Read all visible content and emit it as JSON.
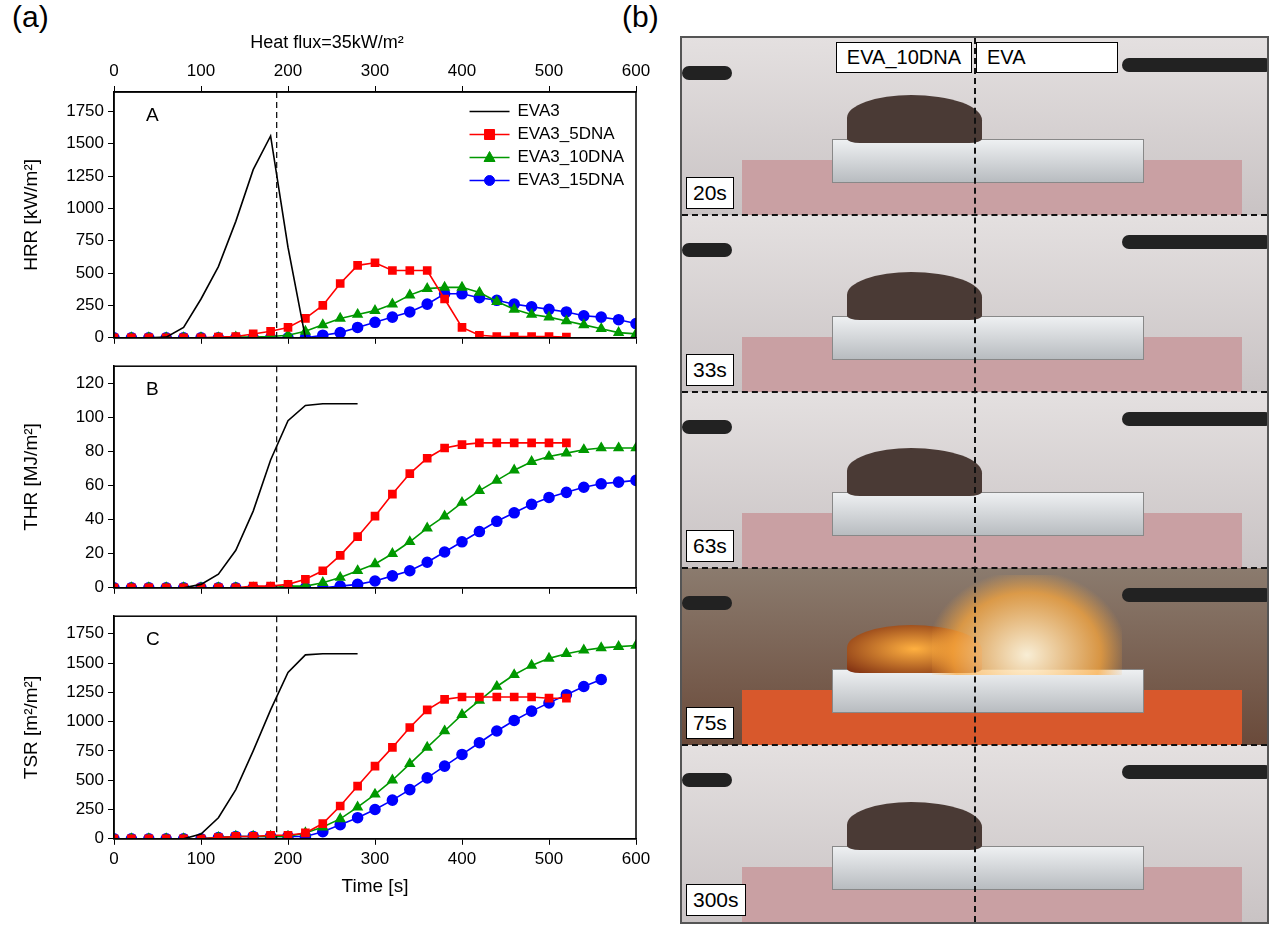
{
  "panel_labels": [
    "(a)",
    "(b)"
  ],
  "chart_data": [
    {
      "type": "line",
      "title": "Heat flux=35kW/m²",
      "annotation": "A",
      "y_label": "HRR [kW/m²]",
      "x": [
        0,
        20,
        40,
        60,
        80,
        100,
        120,
        140,
        160,
        180,
        200,
        220,
        240,
        260,
        280,
        300,
        320,
        340,
        360,
        380,
        400,
        420,
        440,
        460,
        480,
        500,
        520,
        540,
        560,
        580,
        600
      ],
      "xlim": [
        0,
        600
      ],
      "xticks": [
        0,
        100,
        200,
        300,
        400,
        500,
        600
      ],
      "x2lim": [
        0,
        600
      ],
      "x2ticks": [
        0,
        100,
        200,
        300,
        400,
        500,
        600
      ],
      "ylim": [
        0,
        1900
      ],
      "yticks": [
        0,
        250,
        500,
        750,
        1000,
        1250,
        1500,
        1750
      ],
      "vline_x": 187,
      "grid": false,
      "tick_labels": "y",
      "legend": "upper right",
      "series": [
        {
          "name": "EVA3",
          "color": "#000000",
          "marker": "none",
          "line_style": "solid",
          "values": [
            0,
            0,
            0,
            5,
            80,
            300,
            550,
            900,
            1300,
            1560,
            700,
            0,
            null,
            null,
            null,
            null,
            null,
            null,
            null,
            null,
            null,
            null,
            null,
            null,
            null,
            null,
            null,
            null,
            null,
            null,
            null
          ]
        },
        {
          "name": "EVA3_5DNA",
          "color": "#ff0000",
          "marker": "square",
          "line_style": "solid",
          "values": [
            0,
            0,
            0,
            0,
            0,
            0,
            5,
            10,
            30,
            50,
            80,
            150,
            250,
            420,
            560,
            580,
            520,
            520,
            520,
            300,
            80,
            20,
            10,
            10,
            10,
            10,
            5,
            null,
            null,
            null,
            null
          ]
        },
        {
          "name": "EVA3_10DNA",
          "color": "#009900",
          "marker": "triangle",
          "line_style": "solid",
          "values": [
            0,
            0,
            0,
            0,
            0,
            0,
            0,
            5,
            5,
            10,
            20,
            50,
            100,
            150,
            180,
            210,
            260,
            330,
            380,
            390,
            390,
            350,
            280,
            220,
            180,
            160,
            130,
            100,
            70,
            40,
            30
          ]
        },
        {
          "name": "EVA3_15DNA",
          "color": "#0000ff",
          "marker": "circle",
          "line_style": "solid",
          "values": [
            0,
            0,
            0,
            0,
            0,
            0,
            0,
            0,
            0,
            0,
            0,
            0,
            20,
            40,
            80,
            120,
            160,
            200,
            260,
            340,
            340,
            310,
            290,
            260,
            240,
            220,
            200,
            170,
            160,
            140,
            110
          ]
        }
      ]
    },
    {
      "type": "line",
      "annotation": "B",
      "y_label": "THR [MJ/m²]",
      "x": [
        0,
        20,
        40,
        60,
        80,
        100,
        120,
        140,
        160,
        180,
        200,
        220,
        240,
        260,
        280,
        300,
        320,
        340,
        360,
        380,
        400,
        420,
        440,
        460,
        480,
        500,
        520,
        540,
        560,
        580,
        600
      ],
      "xlim": [
        0,
        600
      ],
      "xticks": [
        0,
        100,
        200,
        300,
        400,
        500,
        600
      ],
      "ylim": [
        0,
        130
      ],
      "yticks": [
        0,
        20,
        40,
        60,
        80,
        100,
        120
      ],
      "vline_x": 187,
      "grid": false,
      "tick_labels": "y",
      "series": [
        {
          "name": "EVA3",
          "color": "#000000",
          "marker": "none",
          "line_style": "solid",
          "values": [
            0,
            0,
            0,
            0,
            0,
            2,
            8,
            22,
            45,
            75,
            98,
            107,
            108,
            108,
            108,
            null,
            null,
            null,
            null,
            null,
            null,
            null,
            null,
            null,
            null,
            null,
            null,
            null,
            null,
            null,
            null
          ]
        },
        {
          "name": "EVA3_5DNA",
          "color": "#ff0000",
          "marker": "square",
          "line_style": "solid",
          "values": [
            0,
            0,
            0,
            0,
            0,
            0,
            0,
            0,
            1,
            1,
            2,
            5,
            10,
            19,
            30,
            42,
            55,
            67,
            76,
            82,
            84,
            85,
            85,
            85,
            85,
            85,
            85,
            null,
            null,
            null,
            null
          ]
        },
        {
          "name": "EVA3_10DNA",
          "color": "#009900",
          "marker": "triangle",
          "line_style": "solid",
          "values": [
            0,
            0,
            0,
            0,
            0,
            0,
            0,
            0,
            0,
            0,
            1,
            1,
            3,
            6,
            10,
            14,
            20,
            27,
            35,
            42,
            50,
            57,
            63,
            69,
            74,
            77,
            79,
            81,
            82,
            82,
            82
          ]
        },
        {
          "name": "EVA3_15DNA",
          "color": "#0000ff",
          "marker": "circle",
          "line_style": "solid",
          "values": [
            0,
            0,
            0,
            0,
            0,
            0,
            0,
            0,
            0,
            0,
            0,
            0,
            0,
            1,
            2,
            4,
            7,
            10,
            15,
            21,
            27,
            33,
            39,
            44,
            49,
            53,
            56,
            59,
            61,
            62,
            63
          ]
        }
      ]
    },
    {
      "type": "line",
      "annotation": "C",
      "y_label": "TSR [m²/m²]",
      "x_label": "Time [s]",
      "x": [
        0,
        20,
        40,
        60,
        80,
        100,
        120,
        140,
        160,
        180,
        200,
        220,
        240,
        260,
        280,
        300,
        320,
        340,
        360,
        380,
        400,
        420,
        440,
        460,
        480,
        500,
        520,
        540,
        560,
        580,
        600
      ],
      "xlim": [
        0,
        600
      ],
      "xticks": [
        0,
        100,
        200,
        300,
        400,
        500,
        600
      ],
      "ylim": [
        0,
        1900
      ],
      "yticks": [
        0,
        250,
        500,
        750,
        1000,
        1250,
        1500,
        1750
      ],
      "vline_x": 187,
      "grid": false,
      "series": [
        {
          "name": "EVA3",
          "color": "#000000",
          "marker": "none",
          "line_style": "solid",
          "values": [
            0,
            0,
            0,
            0,
            0,
            40,
            180,
            420,
            750,
            1100,
            1420,
            1570,
            1580,
            1580,
            1580,
            null,
            null,
            null,
            null,
            null,
            null,
            null,
            null,
            null,
            null,
            null,
            null,
            null,
            null,
            null,
            null
          ]
        },
        {
          "name": "EVA3_5DNA",
          "color": "#ff0000",
          "marker": "square",
          "line_style": "solid",
          "values": [
            0,
            0,
            0,
            0,
            0,
            0,
            10,
            20,
            20,
            30,
            30,
            50,
            130,
            280,
            450,
            620,
            780,
            950,
            1100,
            1190,
            1210,
            1210,
            1210,
            1210,
            1210,
            1200,
            1200,
            null,
            null,
            null,
            null
          ]
        },
        {
          "name": "EVA3_10DNA",
          "color": "#009900",
          "marker": "triangle",
          "line_style": "solid",
          "values": [
            0,
            0,
            0,
            0,
            0,
            0,
            10,
            20,
            20,
            20,
            20,
            50,
            100,
            170,
            270,
            380,
            500,
            640,
            780,
            920,
            1060,
            1180,
            1300,
            1400,
            1480,
            1540,
            1580,
            1610,
            1630,
            1640,
            1650
          ]
        },
        {
          "name": "EVA3_15DNA",
          "color": "#0000ff",
          "marker": "circle",
          "line_style": "solid",
          "values": [
            0,
            0,
            0,
            0,
            0,
            0,
            10,
            20,
            20,
            20,
            20,
            20,
            60,
            120,
            180,
            250,
            330,
            420,
            520,
            620,
            720,
            820,
            920,
            1010,
            1090,
            1160,
            1230,
            1300,
            1360,
            null,
            null
          ]
        }
      ]
    }
  ],
  "photos": {
    "columns": [
      "EVA_10DNA",
      "EVA"
    ],
    "frames": [
      "20s",
      "33s",
      "63s",
      "75s",
      "300s"
    ]
  }
}
